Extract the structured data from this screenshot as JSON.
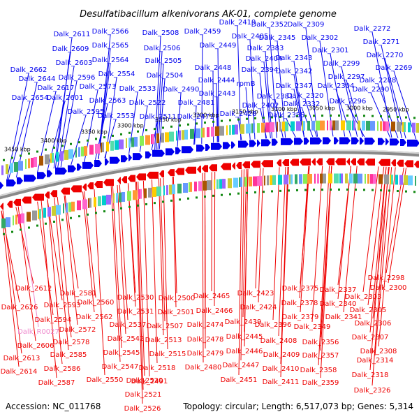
{
  "title": "Desulfatibacillum alkenivorans AK-01, complete genome",
  "accession": "Accession: NC_011768",
  "summary": "Topology: circular; Length: 6,517,073 bp; Genes: 5,314",
  "colors": {
    "forward": "#0000ee",
    "reverse": "#ee0000",
    "rna": "#ee88cc",
    "backbone": "#888888"
  },
  "scale_labels": [
    "3450 kbp",
    "3400 kbp",
    "3350 kbp",
    "3300 kbp",
    "3250 kbp",
    "3200 kbp",
    "3150 kbp",
    "3100 kbp",
    "3050 kbp",
    "3000 kbp",
    "2950 kbp"
  ],
  "top_labels": [
    "Dalk_2611",
    "Dalk_2566",
    "Dalk_2508",
    "Dalk_2459",
    "Dalk_2419",
    "Dalk_2352",
    "Dalk_2309",
    "Dalk_2272",
    "Dalk_2609",
    "Dalk_2565",
    "Dalk_2506",
    "Dalk_2449",
    "Dalk_2405",
    "Dalk_2345",
    "Dalk_2302",
    "Dalk_2271",
    "Dalk_2603",
    "Dalk_2564",
    "Dalk_2505",
    "Dalk_2383",
    "Dalk_2301",
    "Dalk_2662",
    "Dalk_2554",
    "Dalk_2448",
    "Dalk_2404",
    "Dalk_2343",
    "Dalk_2299",
    "Dalk_2270",
    "Dalk_2644",
    "Dalk_2596",
    "Dalk_2504",
    "Dalk_2394",
    "Dalk_2342",
    "Dalk_2297",
    "Dalk_2269",
    "Dalk_2617",
    "Dalk_2573",
    "Dalk_2533",
    "Dalk_2490",
    "Dalk_2444",
    "rpmB",
    "Dalk_2347",
    "Dalk_2304",
    "Dalk_2288",
    "Dalk_2654",
    "Dalk_2601",
    "Dalk_2563",
    "Dalk_2522",
    "Dalk_2443",
    "Dalk_2381",
    "Dalk_2320",
    "Dalk_2290",
    "Dalk_2595",
    "Dalk_2481",
    "Dalk_2402",
    "Dalk_2332",
    "Dalk_2296",
    "Dalk_2553",
    "Dalk_2511",
    "Dalk_2471",
    "Dalk_2428",
    "Dalk_2355"
  ],
  "bottom_labels": [
    "Dalk_2298",
    "Dalk_2300",
    "Dalk_2612",
    "Dalk_2581",
    "Dalk_2375",
    "Dalk_2337",
    "Dalk_2303",
    "Dalk_2423",
    "Dalk_2530",
    "Dalk_2500",
    "Dalk_2465",
    "Dalk_2560",
    "Dalk_2626",
    "Dalk_2593",
    "Dalk_2378",
    "Dalk_2340",
    "Dalk_2424",
    "Dalk_2531",
    "Dalk_2501",
    "Dalk_2466",
    "Dalk_2305",
    "Dalk_2562",
    "Dalk_2594",
    "Dalk_2379",
    "Dalk_2341",
    "Dalk_2537",
    "Dalk_2507",
    "Dalk_2474",
    "Dalk_2439",
    "Dalk_2396",
    "Dalk_2349",
    "Dalk_2306",
    "Dalk_2572",
    "Dalk_R0027",
    "Dalk_2578",
    "Dalk_2542",
    "Dalk_2513",
    "Dalk_2478",
    "Dalk_2445",
    "Dalk_2408",
    "Dalk_2356",
    "Dalk_2307",
    "Dalk_2606",
    "Dalk_2585",
    "Dalk_2545",
    "Dalk_2515",
    "Dalk_2479",
    "Dalk_2446",
    "Dalk_2409",
    "Dalk_2357",
    "Dalk_2308",
    "Dalk_2613",
    "Dalk_2547",
    "Dalk_2518",
    "Dalk_2480",
    "Dalk_2447",
    "Dalk_2410",
    "Dalk_2358",
    "Dalk_2314",
    "Dalk_2586",
    "Dalk_2614",
    "Dalk_2550",
    "Dalk_2491",
    "Dalk_2451",
    "Dalk_2411",
    "Dalk_2359",
    "Dalk_2318",
    "Dalk_2587",
    "Dalk_2520",
    "Dalk_2326",
    "Dalk_2521",
    "Dalk_2526"
  ]
}
